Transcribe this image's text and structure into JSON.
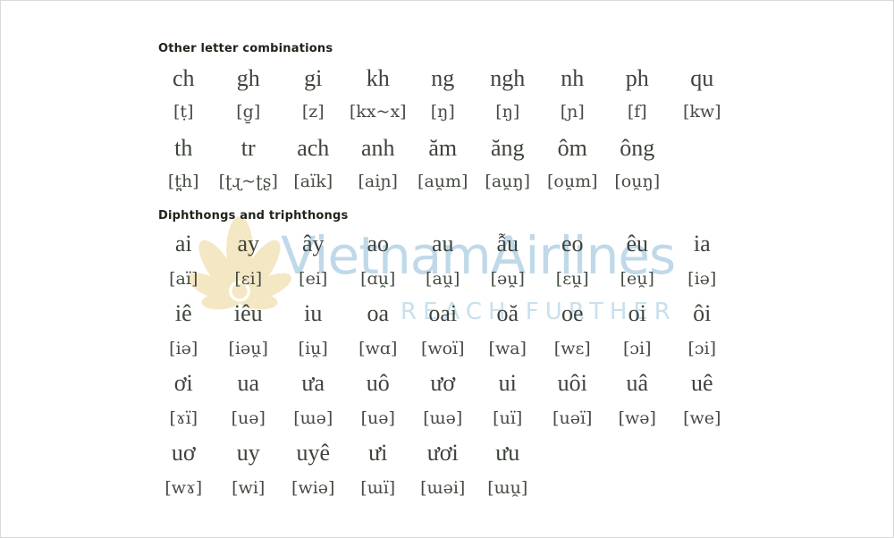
{
  "sections": [
    {
      "title": "Other letter combinations",
      "rows": [
        {
          "letters": [
            "ch",
            "gh",
            "gi",
            "kh",
            "ng",
            "ngh",
            "nh",
            "ph",
            "qu"
          ],
          "ipa": [
            "[ṭ]",
            "[g̱]",
            "[z]",
            "[kx~x]",
            "[ŋ]",
            "[ŋ]",
            "[ɲ]",
            "[f]",
            "[kw]"
          ]
        },
        {
          "letters": [
            "th",
            "tr",
            "ach",
            "anh",
            "ăm",
            "ăng",
            "ôm",
            "ông"
          ],
          "ipa": [
            "[t̪h]",
            "[ʈɻ~ʈʂ]",
            "[aïk]",
            "[aiɲ]",
            "[au̯m]",
            "[au̯ŋ]",
            "[ou̯m]",
            "[ou̯ŋ]"
          ]
        }
      ]
    },
    {
      "title": "Diphthongs and triphthongs",
      "rows": [
        {
          "letters": [
            "ai",
            "ay",
            "ây",
            "ao",
            "au",
            "ẫu",
            "eo",
            "êu",
            "ia"
          ],
          "ipa": [
            "[aï]",
            "[ɛi]",
            "[ei]",
            "[ɑu̯]",
            "[au̯]",
            "[əu̯]",
            "[ɛu̯]",
            "[eu̯]",
            "[iə]"
          ]
        },
        {
          "letters": [
            "iê",
            "iêu",
            "iu",
            "oa",
            "oai",
            "oă",
            "oe",
            "oi",
            "ôi"
          ],
          "ipa": [
            "[iə]",
            "[iəu̯]",
            "[iu̯]",
            "[wɑ]",
            "[woï]",
            "[wa]",
            "[wɛ]",
            "[ɔi]",
            "[ɔi]"
          ]
        },
        {
          "letters": [
            "ơi",
            "ua",
            "ưa",
            "uô",
            "ươ",
            "ui",
            "uôi",
            "uâ",
            "uê"
          ],
          "ipa": [
            "[ɤï]",
            "[uə]",
            "[ɯə]",
            "[uə]",
            "[ɯə]",
            "[uï]",
            "[uəï]",
            "[wə]",
            "[we]"
          ]
        },
        {
          "letters": [
            "uơ",
            "uy",
            "uyê",
            "ưi",
            "ươi",
            "ưu"
          ],
          "ipa": [
            "[wɤ]",
            "[wi]",
            "[wiə]",
            "[ɯï]",
            "[ɯəi]",
            "[ɯu̯]"
          ]
        }
      ]
    }
  ],
  "watermark": {
    "brand": "VietnamAirlines",
    "tagline": "REACH FURTHER",
    "logo": "lotus-icon",
    "brand_color": "#bfd9e9",
    "tagline_color": "#c9e0ed",
    "lotus_color": "#f4e7c4"
  },
  "text_color": "#3e443c",
  "heading_color": "#20241a"
}
